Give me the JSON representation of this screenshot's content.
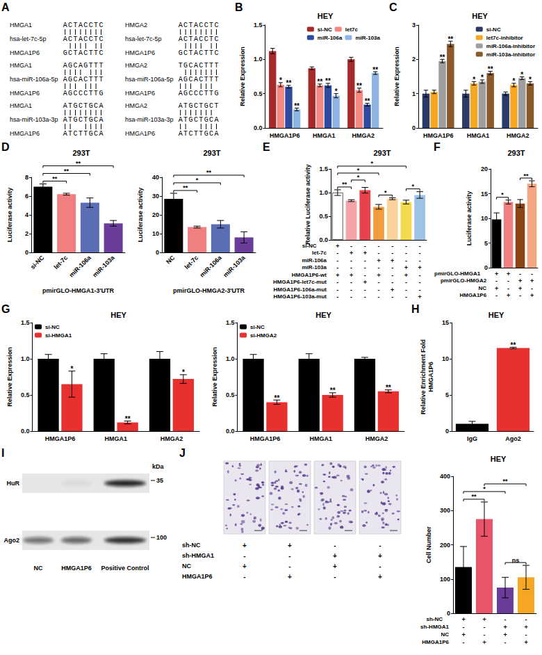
{
  "panel_a": {
    "panel_label": "A",
    "columns": [
      [
        {
          "target": {
            "name": "HMGA1",
            "seq": "ACTACCTC"
          },
          "mirna": {
            "name": "hsa-let-7c-5p",
            "seq": "ACTACCTC"
          },
          "pseudogene": {
            "name": "HMGA1P6",
            "seq": "GCTACTTC"
          }
        },
        {
          "target": {
            "name": "HMGA1",
            "seq": "AGCAGTTT"
          },
          "mirna": {
            "name": "hsa-miR-106a-5p",
            "seq": "AGCACTTT"
          },
          "pseudogene": {
            "name": "HMGA1P6",
            "seq": "AGCCCTTG"
          }
        },
        {
          "target": {
            "name": "HMGA1",
            "seq": "ATGCTGCA"
          },
          "mirna": {
            "name": "hsa-miR-103a-3p",
            "seq": "ATGCTGCA"
          },
          "pseudogene": {
            "name": "HMGA1P6",
            "seq": "ATCTTGCA"
          }
        }
      ],
      [
        {
          "target": {
            "name": "HMGA2",
            "seq": "ACTACCTC"
          },
          "mirna": {
            "name": "hsa-let-7c-5p",
            "seq": "ACTACCTC"
          },
          "pseudogene": {
            "name": "HMGA1P6",
            "seq": "GCTACTTC"
          }
        },
        {
          "target": {
            "name": "HMGA2",
            "seq": "TGCACTTT"
          },
          "mirna": {
            "name": "hsa-miR-106a-5p",
            "seq": "AGCACTTT"
          },
          "pseudogene": {
            "name": "HMGA1P6",
            "seq": "AGCCCTTG"
          }
        },
        {
          "target": {
            "name": "HMGA2",
            "seq": "ATGCTGCT"
          },
          "mirna": {
            "name": "hsa-miR-103a-3p",
            "seq": "ATGCTGCA"
          },
          "pseudogene": {
            "name": "HMGA1P6",
            "seq": "ATCTTGCA"
          }
        }
      ]
    ]
  },
  "chart_data": [
    {
      "panel_label": "B",
      "type": "bar",
      "title": "HEY",
      "categories": [
        "HMGA1P6",
        "HMGA1",
        "HMGA2"
      ],
      "ylabel": "Relative Expression",
      "ylim": [
        0,
        1.5
      ],
      "yticks": [
        {
          "value": 0,
          "label": "0.0"
        },
        {
          "value": 0.5,
          "label": "0.5"
        },
        {
          "value": 1,
          "label": "1.0"
        },
        {
          "value": 1.5,
          "label": "1.5"
        }
      ],
      "grid": false,
      "legend": "top-right",
      "series": [
        {
          "name": "si-NC",
          "color": "#a52a2a",
          "values": [
            1.12,
            0.87,
            1.0
          ],
          "errors": [
            0.04,
            0.02,
            0.03
          ]
        },
        {
          "name": "let7c",
          "color": "#f4877f",
          "values": [
            0.63,
            0.62,
            0.55
          ],
          "errors": [
            0.03,
            0.02,
            0.03
          ],
          "annotations": [
            "*",
            "**",
            "**"
          ]
        },
        {
          "name": "miR-106a",
          "color": "#2e4a9e",
          "values": [
            0.6,
            0.62,
            0.34
          ],
          "errors": [
            0.02,
            0.03,
            0.02
          ],
          "annotations": [
            "**",
            "**",
            "**"
          ]
        },
        {
          "name": "miR-103a",
          "color": "#8db4e2",
          "values": [
            0.27,
            0.47,
            0.8
          ],
          "errors": [
            0.02,
            0.03,
            0.02
          ],
          "annotations": [
            "**",
            "*",
            "**"
          ]
        }
      ]
    },
    {
      "panel_label": "C",
      "type": "bar",
      "title": "HEY",
      "categories": [
        "HMGA1P6",
        "HMGA1",
        "HMGA2"
      ],
      "ylabel": "Relative Expression",
      "ylim": [
        0,
        3
      ],
      "yticks": [
        0,
        1,
        2,
        3
      ],
      "grid": false,
      "legend": "top-right",
      "series": [
        {
          "name": "si-NC",
          "color": "#2b3a67",
          "values": [
            1.0,
            1.0,
            1.0
          ],
          "errors": [
            0.1,
            0.1,
            0.05
          ]
        },
        {
          "name": "let7c-inhibitor",
          "color": "#f5a623",
          "values": [
            1.05,
            1.3,
            1.25
          ],
          "errors": [
            0.05,
            0.05,
            0.05
          ],
          "annotations": [
            null,
            "*",
            "*"
          ]
        },
        {
          "name": "miR-106a-inhibitor",
          "color": "#9e9e9e",
          "values": [
            1.95,
            1.35,
            1.45
          ],
          "errors": [
            0.05,
            0.05,
            0.04
          ],
          "annotations": [
            "**",
            "*",
            "*"
          ]
        },
        {
          "name": "miR-103a-inhibitor",
          "color": "#8b5a2b",
          "values": [
            2.45,
            1.6,
            1.3
          ],
          "errors": [
            0.08,
            0.05,
            0.05
          ],
          "annotations": [
            "**",
            "**",
            "*"
          ]
        }
      ]
    },
    {
      "panel_label": "D",
      "type": "bar",
      "title": "293T",
      "categories": [
        "si-NC",
        "let-7c",
        "miR-106a",
        "miR-103a"
      ],
      "xlabel": "pmirGLO-HMGA1-3'UTR",
      "ylabel": "Luciferase activity",
      "ylim": [
        0,
        8
      ],
      "yticks": [
        0,
        2,
        4,
        6,
        8
      ],
      "grid": false,
      "series": [
        {
          "colors": [
            "#000000",
            "#f08080",
            "#5b6db5",
            "#6a3d9a"
          ],
          "values": [
            7.0,
            6.2,
            5.3,
            3.1
          ],
          "errors": [
            0.3,
            0.1,
            0.5,
            0.3
          ]
        }
      ],
      "comparisons": [
        {
          "from": 0,
          "to": 1,
          "label": "**"
        },
        {
          "from": 0,
          "to": 2,
          "label": "**"
        },
        {
          "from": 0,
          "to": 3,
          "label": "**"
        }
      ]
    },
    {
      "type": "bar",
      "title": "293T",
      "categories": [
        "NC",
        "let-7c",
        "miR-106a",
        "miR-103a"
      ],
      "xlabel": "pmirGLO-HMGA2-3'UTR",
      "ylabel": "Luciferase activity",
      "ylim": [
        0,
        40
      ],
      "yticks": [
        0,
        10,
        20,
        30,
        40
      ],
      "grid": false,
      "series": [
        {
          "colors": [
            "#000000",
            "#f08080",
            "#5b6db5",
            "#6a3d9a"
          ],
          "values": [
            28.5,
            13.5,
            15,
            8
          ],
          "errors": [
            3,
            0.5,
            2,
            3
          ]
        }
      ],
      "comparisons": [
        {
          "from": 0,
          "to": 1,
          "label": "**"
        },
        {
          "from": 0,
          "to": 2,
          "label": "*"
        },
        {
          "from": 0,
          "to": 3,
          "label": "**"
        }
      ]
    },
    {
      "panel_label": "E",
      "type": "bar",
      "title": "293T",
      "categories": [
        null,
        null,
        null,
        null,
        null,
        null,
        null
      ],
      "ylabel": "Relative Luciferase activity",
      "ylim": [
        0,
        1.5
      ],
      "yticks": [
        {
          "value": 0,
          "label": "0.0"
        },
        {
          "value": 0.5,
          "label": "0.5"
        },
        {
          "value": 1,
          "label": "1.0"
        },
        {
          "value": 1.5,
          "label": "1.5"
        }
      ],
      "grid": false,
      "series": [
        {
          "colors": [
            "#ffffff",
            "#f4a3a8",
            "#e8424d",
            "#f39c3c",
            "#f8d49a",
            "#f2d94e",
            "#9cc3e6"
          ],
          "values": [
            1.0,
            0.83,
            1.05,
            0.7,
            0.87,
            0.8,
            0.95
          ],
          "errors": [
            0.06,
            0.02,
            0.06,
            0.05,
            0.02,
            0.04,
            0.07
          ]
        }
      ],
      "comparisons": [
        {
          "from": 0,
          "to": 1,
          "label": "**"
        },
        {
          "from": 1,
          "to": 2,
          "label": "*"
        },
        {
          "from": 0,
          "to": 3,
          "label": "*"
        },
        {
          "from": 3,
          "to": 4,
          "label": "*"
        },
        {
          "from": 0,
          "to": 5,
          "label": "*"
        },
        {
          "from": 5,
          "to": 6,
          "label": "*"
        }
      ],
      "conditions": {
        "rows": [
          {
            "label": "si-NC",
            "marks": [
              "+",
              "-",
              "-",
              "-",
              "-",
              "-",
              "-"
            ]
          },
          {
            "label": "let-7c",
            "marks": [
              "-",
              "+",
              "+",
              "-",
              "-",
              "-",
              "-"
            ]
          },
          {
            "label": "miR-106a",
            "marks": [
              "-",
              "-",
              "-",
              "+",
              "+",
              "-",
              "-"
            ]
          },
          {
            "label": "miR-103a",
            "marks": [
              "-",
              "-",
              "-",
              "-",
              "-",
              "+",
              "+"
            ]
          },
          {
            "label": "HMGA1P6-wt",
            "marks": [
              "+",
              "+",
              "-",
              "+",
              "-",
              "+",
              "-"
            ]
          },
          {
            "label": "HMGA1P6-let7c-mut",
            "marks": [
              "-",
              "-",
              "+",
              "-",
              "-",
              "-",
              "-"
            ]
          },
          {
            "label": "HMGA1P6-106a-mut",
            "marks": [
              "-",
              "-",
              "-",
              "-",
              "+",
              "-",
              "-"
            ]
          },
          {
            "label": "HMGA1P6-103a-mut",
            "marks": [
              "-",
              "-",
              "-",
              "-",
              "-",
              "-",
              "+"
            ]
          }
        ]
      }
    },
    {
      "panel_label": "F",
      "type": "bar",
      "title": "293T",
      "categories": [
        null,
        null,
        null,
        null
      ],
      "ylabel": "Luciferase activity",
      "ylim": [
        0,
        20
      ],
      "yticks": [
        0,
        5,
        10,
        15,
        20
      ],
      "grid": false,
      "series": [
        {
          "colors": [
            "#000000",
            "#f08080",
            "#8b4513",
            "#f4a582"
          ],
          "values": [
            9.8,
            13.3,
            13,
            17
          ],
          "errors": [
            1.3,
            0.4,
            0.8,
            0.6
          ]
        }
      ],
      "comparisons": [
        {
          "from": 0,
          "to": 1,
          "label": "*"
        },
        {
          "from": 2,
          "to": 3,
          "label": "**"
        }
      ],
      "conditions": {
        "rows": [
          {
            "label": "pmirGLO-HMGA1",
            "marks": [
              "+",
              "+",
              "-",
              "-"
            ]
          },
          {
            "label": "pmirGLO-HMGA2",
            "marks": [
              "-",
              "-",
              "+",
              "+"
            ]
          },
          {
            "label": "NC",
            "marks": [
              "+",
              "-",
              "+",
              "-"
            ]
          },
          {
            "label": "HMGA1P6",
            "marks": [
              "-",
              "+",
              "-",
              "+"
            ]
          }
        ]
      }
    },
    {
      "panel_label": "G",
      "type": "bar",
      "title": "HEY",
      "categories": [
        "HMGA1P6",
        "HMGA1",
        "HMGA2"
      ],
      "ylabel": "Relative Expression",
      "ylim": [
        0,
        1.5
      ],
      "yticks": [
        {
          "value": 0,
          "label": "0.0"
        },
        {
          "value": 0.5,
          "label": "0.5"
        },
        {
          "value": 1,
          "label": "1.0"
        },
        {
          "value": 1.5,
          "label": "1.5"
        }
      ],
      "grid": false,
      "legend": "top-left",
      "series": [
        {
          "name": "si-NC",
          "color": "#000000",
          "values": [
            1.0,
            1.0,
            1.0
          ],
          "errors": [
            0.06,
            0.07,
            0.1
          ]
        },
        {
          "name": "si-HMGA1",
          "color": "#e8302e",
          "values": [
            0.65,
            0.12,
            0.72
          ],
          "errors": [
            0.18,
            0.02,
            0.06
          ],
          "annotations": [
            "*",
            "**",
            "*"
          ]
        }
      ]
    },
    {
      "type": "bar",
      "title": "HEY",
      "categories": [
        "HMGA1P6",
        "HMGA1",
        "HMGA2"
      ],
      "ylabel": "Relative Expression",
      "ylim": [
        0,
        1.5
      ],
      "yticks": [
        {
          "value": 0,
          "label": "0.0"
        },
        {
          "value": 0.5,
          "label": "0.5"
        },
        {
          "value": 1,
          "label": "1.0"
        },
        {
          "value": 1.5,
          "label": "1.5"
        }
      ],
      "grid": false,
      "legend": "top-left",
      "series": [
        {
          "name": "si-NC",
          "color": "#000000",
          "values": [
            1.0,
            1.0,
            1.0
          ],
          "errors": [
            0.06,
            0.07,
            0.02
          ]
        },
        {
          "name": "si-HMGA2",
          "color": "#e8302e",
          "values": [
            0.4,
            0.5,
            0.55
          ],
          "errors": [
            0.03,
            0.03,
            0.02
          ],
          "annotations": [
            "**",
            "**",
            "**"
          ]
        }
      ]
    },
    {
      "panel_label": "H",
      "type": "bar",
      "title": "HEY",
      "categories": [
        "IgG",
        "Ago2"
      ],
      "ylabel": "Relative Enrichment Fold\nHMGA1P6",
      "ylim": [
        0,
        15
      ],
      "yticks": [
        0,
        5,
        10,
        15
      ],
      "grid": false,
      "series": [
        {
          "colors": [
            "#000000",
            "#e8302e"
          ],
          "values": [
            1.0,
            11.5
          ],
          "errors": [
            0.35,
            0.1
          ],
          "annotations": [
            null,
            "**"
          ]
        }
      ]
    },
    {
      "type": "bar",
      "title": "HEY",
      "categories": [
        null,
        null,
        null,
        null
      ],
      "ylabel": "Cell Number",
      "ylim": [
        0,
        400
      ],
      "yticks": [
        0,
        100,
        200,
        300,
        400
      ],
      "grid": false,
      "series": [
        {
          "colors": [
            "#000000",
            "#e9546b",
            "#6a3d9a",
            "#f5a623"
          ],
          "values": [
            135,
            275,
            75,
            105
          ],
          "errors": [
            60,
            50,
            30,
            35
          ]
        }
      ],
      "comparisons": [
        {
          "from": 0,
          "to": 1,
          "label": "**"
        },
        {
          "from": 0,
          "to": 2,
          "label": "*"
        },
        {
          "from": 1,
          "to": 3,
          "label": "**"
        },
        {
          "from": 2,
          "to": 3,
          "label": "ns"
        }
      ],
      "conditions": {
        "rows": [
          {
            "label": "sh-NC",
            "marks": [
              "+",
              "+",
              "-",
              "-"
            ]
          },
          {
            "label": "sh-HMGA1",
            "marks": [
              "-",
              "-",
              "+",
              "+"
            ]
          },
          {
            "label": "NC",
            "marks": [
              "+",
              "-",
              "+",
              "-"
            ]
          },
          {
            "label": "HMGA1P6",
            "marks": [
              "-",
              "+",
              "-",
              "+"
            ]
          }
        ]
      }
    }
  ],
  "panel_i": {
    "panel_label": "I",
    "unit": "kDa",
    "rows": [
      {
        "label": "HuR",
        "marker": 35
      },
      {
        "label": "Ago2",
        "marker": 100
      }
    ],
    "lanes": [
      "NC",
      "HMGA1P6",
      "Positive Control"
    ]
  },
  "panel_j": {
    "panel_label": "J"
  }
}
